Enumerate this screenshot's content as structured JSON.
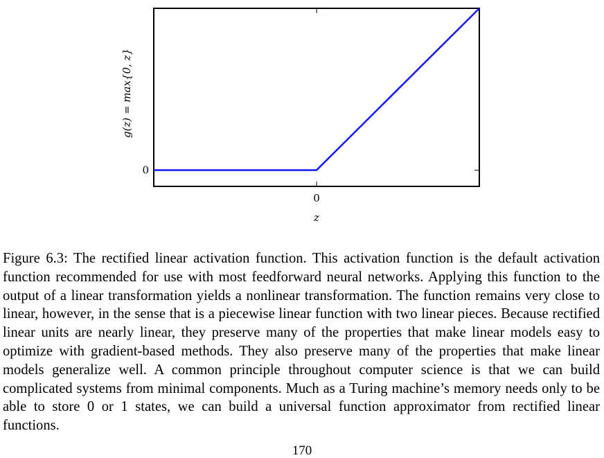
{
  "chart_data": {
    "type": "line",
    "title": "",
    "xlabel": "z",
    "ylabel": "g(z) = max{0, z}",
    "x_ticks": [
      "0"
    ],
    "y_ticks": [
      "0"
    ],
    "xlim": [
      -1,
      1
    ],
    "ylim": [
      -0.1,
      1
    ],
    "grid": false,
    "series": [
      {
        "x": [
          -1,
          0,
          1
        ],
        "y": [
          0,
          0,
          1
        ],
        "color": "#1a1aff"
      }
    ]
  },
  "caption": {
    "text": "Figure 6.3: The rectified linear activation function. This activation function is the default activation function recommended for use with most feedforward neural networks. Applying this function to the output of a linear transformation yields a nonlinear transformation. The function remains very close to linear, however, in the sense that is a piecewise linear function with two linear pieces. Because rectified linear units are nearly linear, they preserve many of the properties that make linear models easy to optimize with gradient-based methods. They also preserve many of the properties that make linear models generalize well. A common principle throughout computer science is that we can build complicated systems from minimal components. Much as a Turing machine’s memory needs only to be able to store 0 or 1 states, we can build a universal function approximator from rectified linear functions."
  },
  "page": {
    "number": "170"
  }
}
